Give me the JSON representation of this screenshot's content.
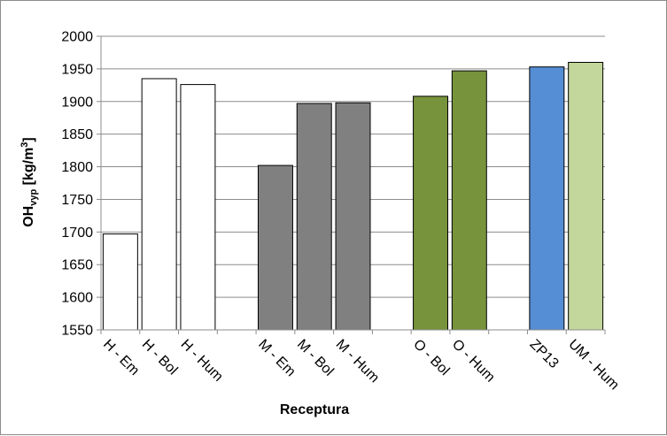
{
  "chart_data": {
    "type": "bar",
    "xlabel": "Receptura",
    "ylabel": {
      "main": "OH",
      "subscript": "vyp",
      "unit_prefix": " [kg/m",
      "unit_super": "3",
      "unit_suffix": "]"
    },
    "ylim": [
      1550,
      2000
    ],
    "yticks": [
      "1550",
      "1600",
      "1650",
      "1700",
      "1750",
      "1800",
      "1850",
      "1900",
      "1950",
      "2000"
    ],
    "grid": true,
    "legend": "none",
    "categories": [
      "H - Em",
      "H - Bol",
      "H - Hum",
      "M - Em",
      "M - Bol",
      "M - Hum",
      "O - Bol",
      "O - Hum",
      "ZP13",
      "UM - Hum"
    ],
    "groups": [
      [
        0,
        1,
        2
      ],
      [
        3,
        4,
        5
      ],
      [
        6,
        7
      ],
      [
        8,
        9
      ]
    ],
    "values": [
      1697,
      1935,
      1926,
      1802,
      1897,
      1898,
      1908,
      1947,
      1953,
      1960
    ],
    "colors": [
      "#ffffff",
      "#ffffff",
      "#ffffff",
      "#808080",
      "#808080",
      "#808080",
      "#77933c",
      "#77933c",
      "#558ed5",
      "#c3d69b"
    ]
  }
}
